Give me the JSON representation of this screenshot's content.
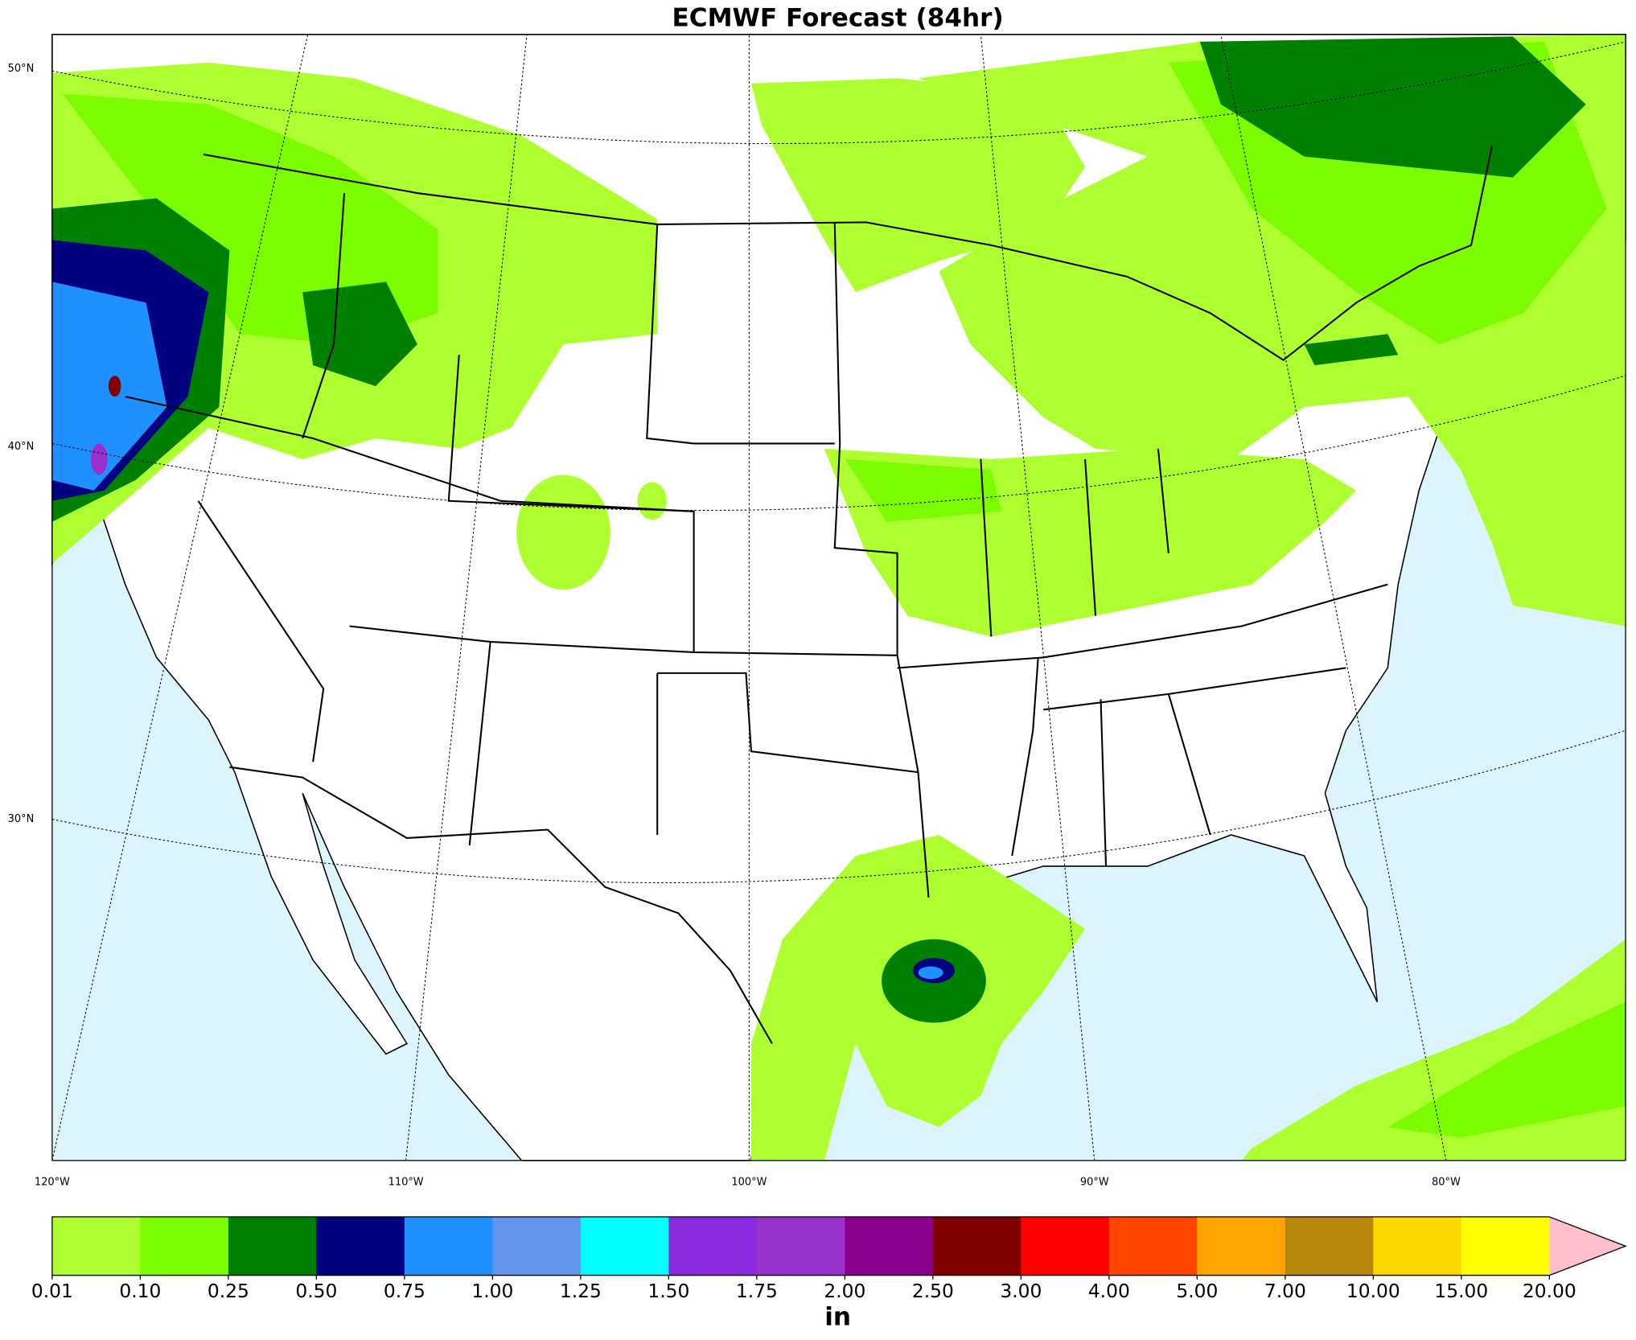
{
  "title": "ECMWF Forecast (84hr)",
  "map": {
    "lat_labels": [
      "50°N",
      "40°N",
      "30°N"
    ],
    "lon_labels": [
      "120°W",
      "110°W",
      "100°W",
      "90°W",
      "80°W"
    ]
  },
  "colorbar": {
    "ticks": [
      0.01,
      {
        "value": 0.1,
        "label": "0.10"
      },
      {
        "value": 0.25,
        "label": "0.25"
      },
      {
        "value": 0.5,
        "label": "0.50"
      },
      {
        "value": 0.75,
        "label": "0.75"
      },
      {
        "value": 1,
        "label": "1.00"
      },
      {
        "value": 1.25,
        "label": "1.25"
      },
      {
        "value": 1.5,
        "label": "1.50"
      },
      {
        "value": 1.75,
        "label": "1.75"
      },
      {
        "value": 2,
        "label": "2.00"
      },
      {
        "value": 2.5,
        "label": "2.50"
      },
      {
        "value": 3,
        "label": "3.00"
      },
      {
        "value": 4,
        "label": "4.00"
      },
      {
        "value": 5,
        "label": "5.00"
      },
      {
        "value": 7,
        "label": "7.00"
      },
      {
        "value": 10,
        "label": "10.00"
      },
      {
        "value": 15,
        "label": "15.00"
      },
      {
        "value": 20,
        "label": "20.00"
      }
    ],
    "colors": [
      "#adff2f",
      "#7cfc00",
      "#008000",
      "#000080",
      "#1e90ff",
      "#6495ed",
      "#00ffff",
      "#8a2be2",
      "#9932cc",
      "#8b008b",
      "#800000",
      "#ff0000",
      "#ff4500",
      "#ffa500",
      "#b8860b",
      "#ffd700",
      "#ffff00"
    ],
    "extend_color": "#ffc0cb",
    "label": "in"
  }
}
